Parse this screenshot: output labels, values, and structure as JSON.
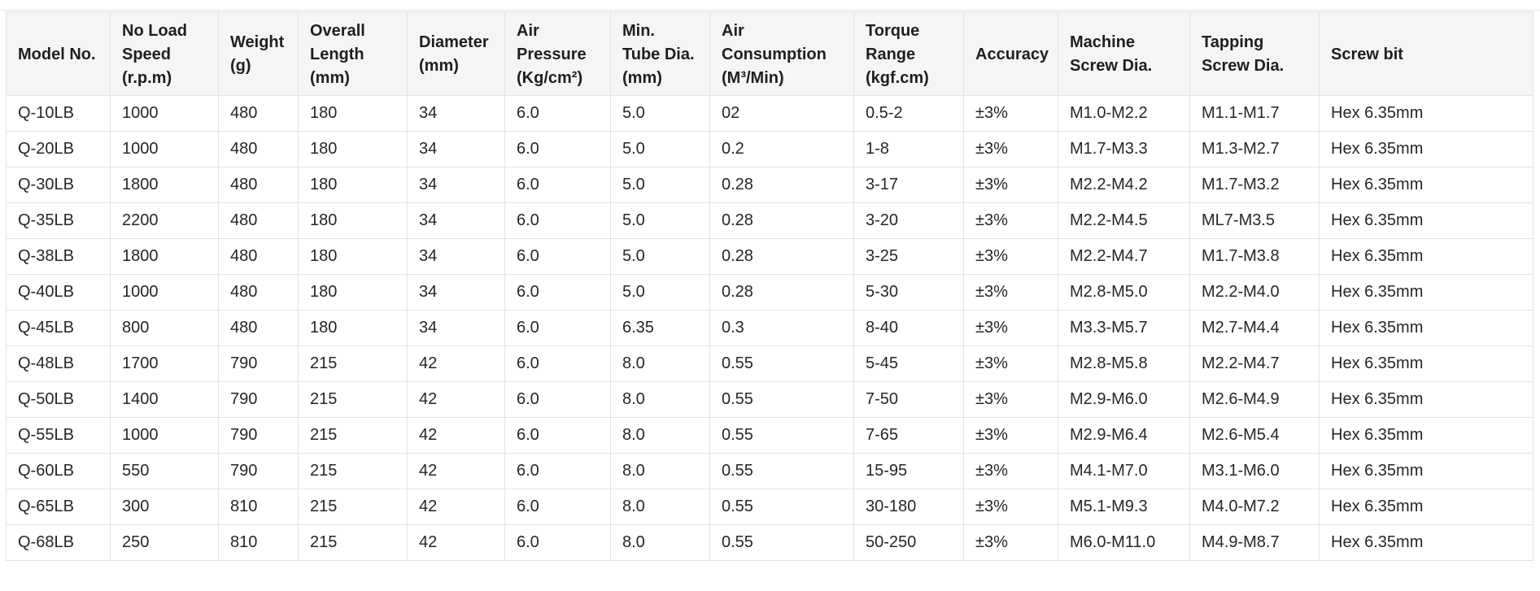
{
  "table": {
    "headers": [
      "Model No.",
      "No Load\nSpeed\n(r.p.m)",
      "Weight\n(g)",
      "Overall\nLength\n(mm)",
      "Diameter\n(mm)",
      "Air\nPressure\n(Kg/cm²)",
      "Min.\nTube Dia.\n(mm)",
      "Air\nConsumption\n(M³/Min)",
      "Torque\nRange\n(kgf.cm)",
      "Accuracy",
      "Machine\nScrew Dia.",
      "Tapping\nScrew Dia.",
      "Screw bit"
    ],
    "rows": [
      [
        "Q-10LB",
        "1000",
        "480",
        "180",
        "34",
        "6.0",
        "5.0",
        "02",
        "0.5-2",
        "±3%",
        "M1.0-M2.2",
        "M1.1-M1.7",
        "Hex 6.35mm"
      ],
      [
        "Q-20LB",
        "1000",
        "480",
        "180",
        "34",
        "6.0",
        "5.0",
        "0.2",
        "1-8",
        "±3%",
        "M1.7-M3.3",
        "M1.3-M2.7",
        "Hex 6.35mm"
      ],
      [
        "Q-30LB",
        "1800",
        "480",
        "180",
        "34",
        "6.0",
        "5.0",
        "0.28",
        "3-17",
        "±3%",
        "M2.2-M4.2",
        "M1.7-M3.2",
        "Hex 6.35mm"
      ],
      [
        "Q-35LB",
        "2200",
        "480",
        "180",
        "34",
        "6.0",
        "5.0",
        "0.28",
        "3-20",
        "±3%",
        "M2.2-M4.5",
        "ML7-M3.5",
        "Hex 6.35mm"
      ],
      [
        "Q-38LB",
        "1800",
        "480",
        "180",
        "34",
        "6.0",
        "5.0",
        "0.28",
        "3-25",
        "±3%",
        "M2.2-M4.7",
        "M1.7-M3.8",
        "Hex 6.35mm"
      ],
      [
        "Q-40LB",
        "1000",
        "480",
        "180",
        "34",
        "6.0",
        "5.0",
        "0.28",
        "5-30",
        "±3%",
        "M2.8-M5.0",
        "M2.2-M4.0",
        "Hex 6.35mm"
      ],
      [
        "Q-45LB",
        "800",
        "480",
        "180",
        "34",
        "6.0",
        "6.35",
        "0.3",
        "8-40",
        "±3%",
        "M3.3-M5.7",
        "M2.7-M4.4",
        "Hex 6.35mm"
      ],
      [
        "Q-48LB",
        "1700",
        "790",
        "215",
        "42",
        "6.0",
        "8.0",
        "0.55",
        "5-45",
        "±3%",
        "M2.8-M5.8",
        "M2.2-M4.7",
        "Hex 6.35mm"
      ],
      [
        "Q-50LB",
        "1400",
        "790",
        "215",
        "42",
        "6.0",
        "8.0",
        "0.55",
        "7-50",
        "±3%",
        "M2.9-M6.0",
        "M2.6-M4.9",
        "Hex 6.35mm"
      ],
      [
        "Q-55LB",
        "1000",
        "790",
        "215",
        "42",
        "6.0",
        "8.0",
        "0.55",
        "7-65",
        "±3%",
        "M2.9-M6.4",
        "M2.6-M5.4",
        "Hex 6.35mm"
      ],
      [
        "Q-60LB",
        "550",
        "790",
        "215",
        "42",
        "6.0",
        "8.0",
        "0.55",
        "15-95",
        "±3%",
        "M4.1-M7.0",
        "M3.1-M6.0",
        "Hex 6.35mm"
      ],
      [
        "Q-65LB",
        "300",
        "810",
        "215",
        "42",
        "6.0",
        "8.0",
        "0.55",
        "30-180",
        "±3%",
        "M5.1-M9.3",
        "M4.0-M7.2",
        "Hex 6.35mm"
      ],
      [
        "Q-68LB",
        "250",
        "810",
        "215",
        "42",
        "6.0",
        "8.0",
        "0.55",
        "50-250",
        "±3%",
        "M6.0-M11.0",
        "M4.9-M8.7",
        "Hex 6.35mm"
      ]
    ]
  }
}
